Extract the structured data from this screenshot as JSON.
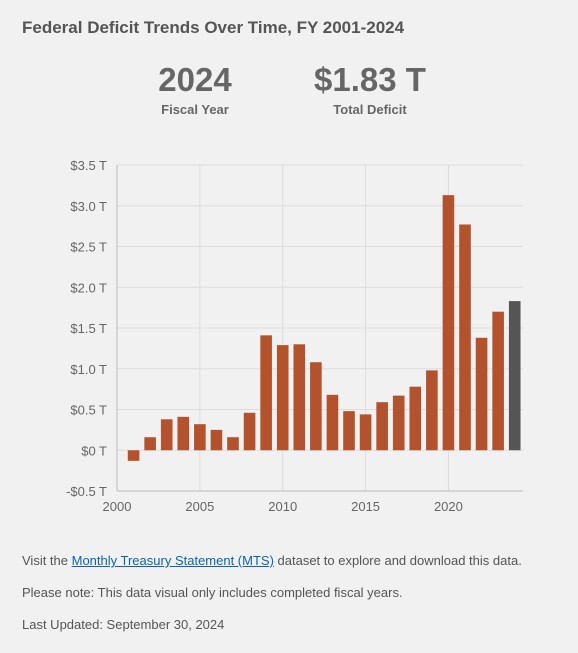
{
  "title": "Federal Deficit Trends Over Time, FY 2001-2024",
  "stats": {
    "year_value": "2024",
    "year_label": "Fiscal Year",
    "deficit_value": "$1.83 T",
    "deficit_label": "Total Deficit"
  },
  "footer": {
    "visit_prefix": "Visit the ",
    "mts_link": "Monthly Treasury Statement (MTS)",
    "visit_suffix": " dataset to explore and download this data.",
    "note": "Please note: This data visual only includes completed fiscal years.",
    "last_updated": "Last Updated: September 30, 2024"
  },
  "colors": {
    "bar": "#b2532e",
    "bar_highlight": "#555555",
    "grid": "#dddddd",
    "axis": "#bbbbbb"
  },
  "chart_data": {
    "type": "bar",
    "title": "",
    "xlabel": "",
    "ylabel": "",
    "unit": "trillion USD",
    "x": [
      2001,
      2002,
      2003,
      2004,
      2005,
      2006,
      2007,
      2008,
      2009,
      2010,
      2011,
      2012,
      2013,
      2014,
      2015,
      2016,
      2017,
      2018,
      2019,
      2020,
      2021,
      2022,
      2023,
      2024
    ],
    "values": [
      -0.13,
      0.16,
      0.38,
      0.41,
      0.32,
      0.25,
      0.16,
      0.46,
      1.41,
      1.29,
      1.3,
      1.08,
      0.68,
      0.48,
      0.44,
      0.59,
      0.67,
      0.78,
      0.98,
      3.13,
      2.77,
      1.38,
      1.7,
      1.83
    ],
    "highlight": 2024,
    "ylim": [
      -0.5,
      3.5
    ],
    "yticks": [
      -0.5,
      0,
      0.5,
      1.0,
      1.5,
      2.0,
      2.5,
      3.0,
      3.5
    ],
    "ytick_labels": [
      "-$0.5 T",
      "$0 T",
      "$0.5 T",
      "$1.0 T",
      "$1.5 T",
      "$2.0 T",
      "$2.5 T",
      "$3.0 T",
      "$3.5 T"
    ],
    "xticks": [
      2000,
      2005,
      2010,
      2015,
      2020
    ],
    "xtick_labels": [
      "2000",
      "2005",
      "2010",
      "2015",
      "2020"
    ],
    "grid": true
  }
}
